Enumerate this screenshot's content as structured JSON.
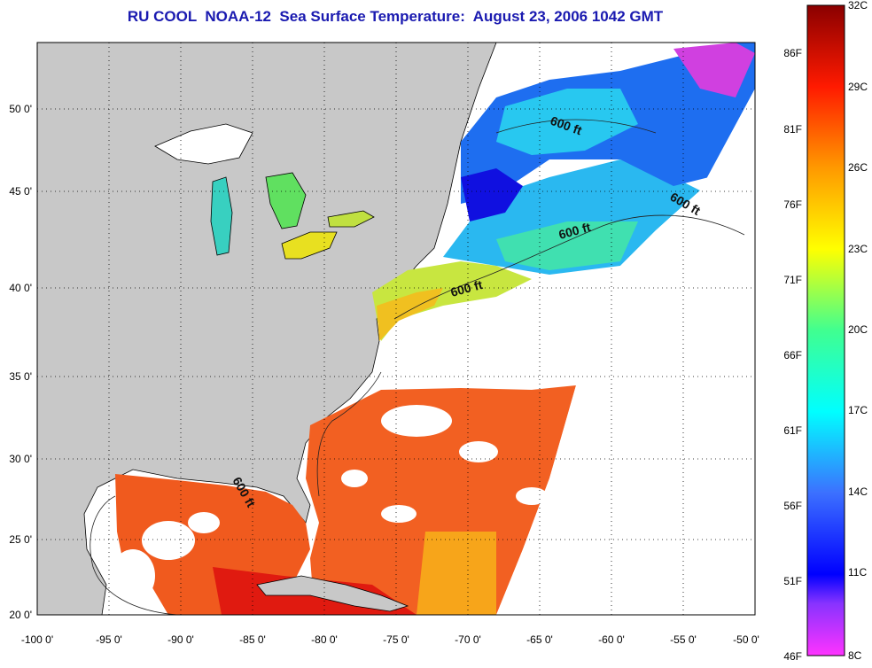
{
  "title": "RU COOL  NOAA-12  Sea Surface Temperature:  August 23, 2006 1042 GMT",
  "axes": {
    "x_ticks": [
      "-100 0'",
      "-95 0'",
      "-90 0'",
      "-85 0'",
      "-80 0'",
      "-75 0'",
      "-70 0'",
      "-65 0'",
      "-60 0'",
      "-55 0'",
      "-50 0'"
    ],
    "y_ticks": [
      "50 0'",
      "45 0'",
      "40 0'",
      "35 0'",
      "30 0'",
      "25 0'",
      "20 0'"
    ]
  },
  "colorbar": {
    "fahrenheit": [
      "86F",
      "81F",
      "76F",
      "71F",
      "66F",
      "61F",
      "56F",
      "51F",
      "46F"
    ],
    "celsius": [
      "32C",
      "29C",
      "26C",
      "23C",
      "20C",
      "17C",
      "14C",
      "11C",
      "8C"
    ]
  },
  "isobath_label": "600 ft",
  "colors": {
    "land": "#c8c8c8",
    "title": "#1a1ab0",
    "clouds": "#ffffff",
    "gulf_stream_warm": "#f05a1e",
    "shelf_cool": "#2ab8f0"
  }
}
